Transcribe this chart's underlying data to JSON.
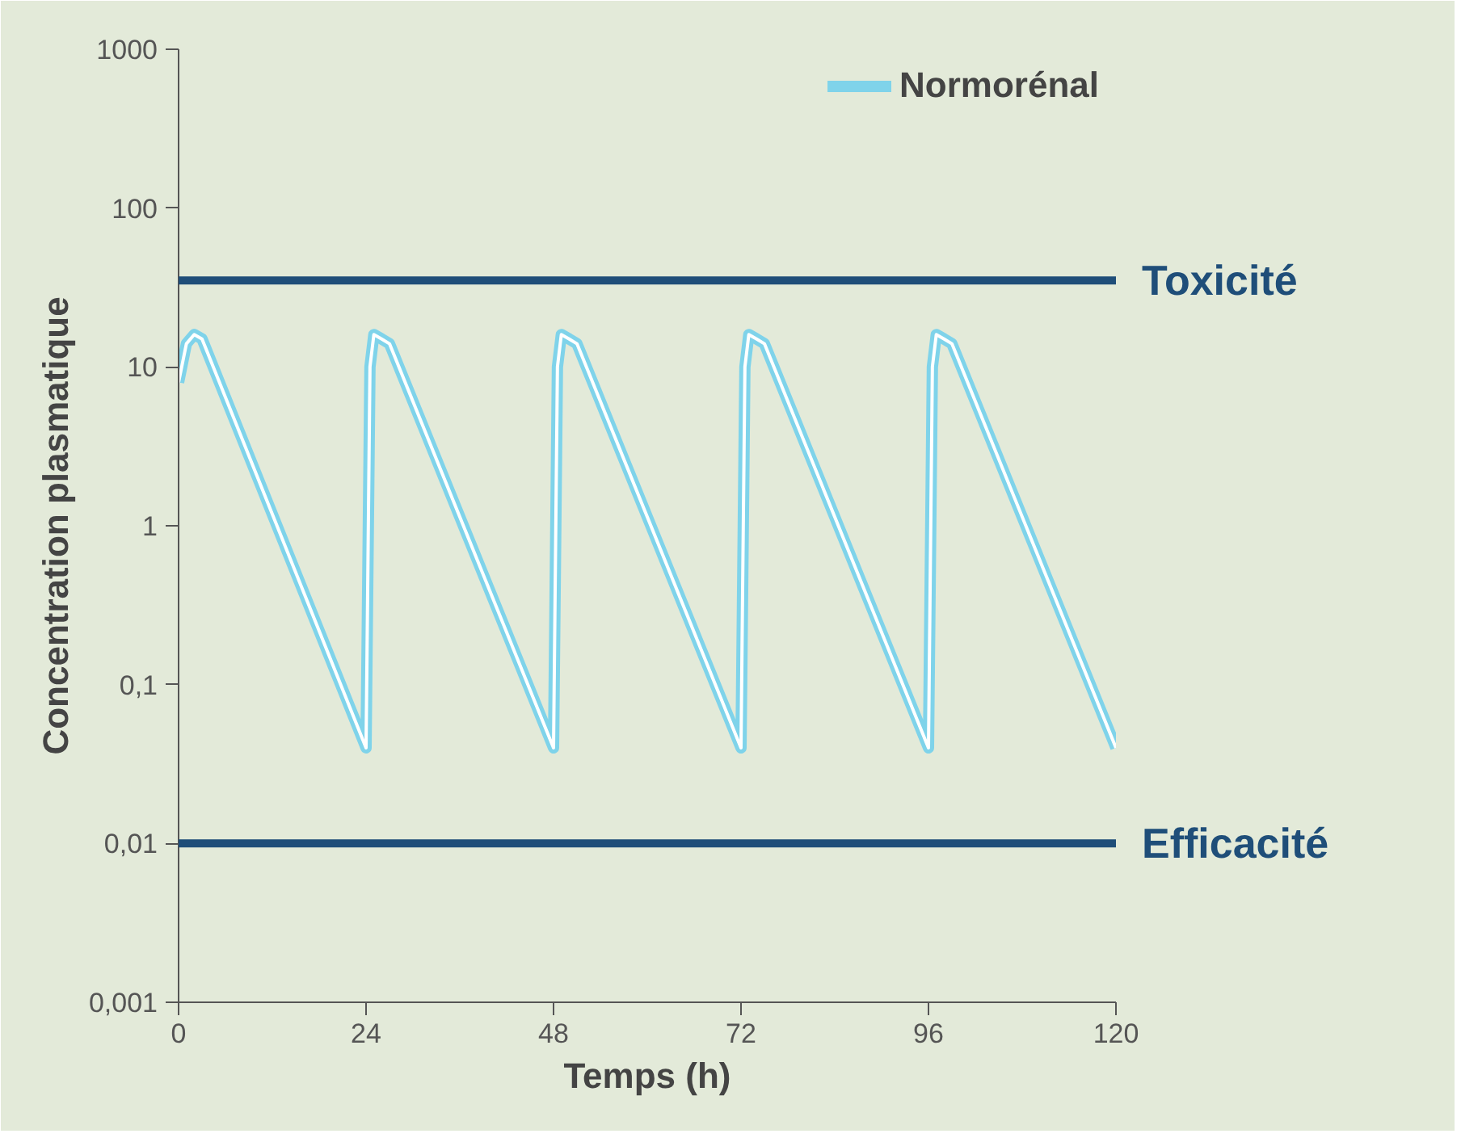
{
  "chart_data": {
    "type": "line",
    "xlabel": "Temps (h)",
    "ylabel": "Concentration plasmatique",
    "log": "y",
    "xlim": [
      0,
      120
    ],
    "ylim": [
      0.001,
      1000
    ],
    "xticks": [
      0,
      24,
      48,
      72,
      96,
      120
    ],
    "yticks": [
      {
        "value": 0.001,
        "label": "0,001"
      },
      {
        "value": 0.01,
        "label": "0,01"
      },
      {
        "value": 0.1,
        "label": "0,1"
      },
      1,
      10,
      100,
      1000
    ],
    "grid": false,
    "legend": "top right",
    "marker": "none",
    "line_style": "solid",
    "series": [
      {
        "name": "Normorénal",
        "color": "#7fd3ea",
        "x": [
          0,
          1,
          2,
          3,
          24,
          24.5,
          25,
          26,
          27,
          48,
          48.5,
          49,
          50,
          51,
          72,
          72.5,
          73,
          74,
          75,
          96,
          96.5,
          97,
          98,
          99,
          120
        ],
        "values": [
          8,
          14,
          16,
          15,
          0.04,
          10,
          16,
          15,
          14,
          0.04,
          10,
          16,
          15,
          14,
          0.04,
          10,
          16,
          15,
          14,
          0.04,
          10,
          16,
          15,
          14,
          0.04
        ]
      }
    ],
    "ref_lines": [
      {
        "axis": "y",
        "value": 35,
        "label": "Toxicité",
        "color": "#1f4e79"
      },
      {
        "axis": "y",
        "value": 0.01,
        "label": "Efficacité",
        "color": "#1f4e79"
      }
    ]
  }
}
